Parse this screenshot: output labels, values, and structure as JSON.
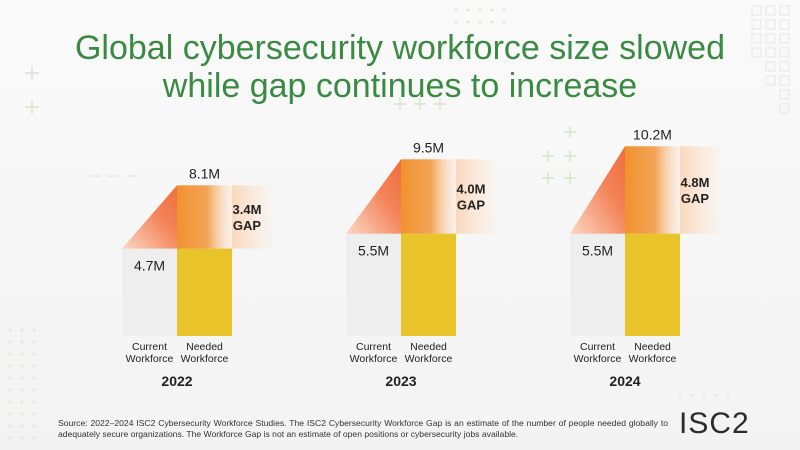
{
  "title": {
    "line1": "Global cybersecurity workforce size slowed",
    "line2": "while gap continues to increase"
  },
  "colors": {
    "title": "#3a8a43",
    "current": "#eeeeee",
    "needed": "#e8c42a",
    "gap": "#f0922e",
    "gap_light": "#fde3ce",
    "wedge": "#f07a4a"
  },
  "chart_data": {
    "type": "bar",
    "title": "Global cybersecurity workforce size slowed while gap continues to increase",
    "categories": [
      "2022",
      "2023",
      "2024"
    ],
    "bar_labels": {
      "current_line1": "Current",
      "current_line2": "Workforce",
      "needed_line1": "Needed",
      "needed_line2": "Workforce"
    },
    "series": [
      {
        "name": "Current Workforce",
        "values": [
          4.7,
          5.5,
          5.5
        ],
        "labels": [
          "4.7M",
          "5.5M",
          "5.5M"
        ]
      },
      {
        "name": "Needed Workforce",
        "values": [
          8.1,
          9.5,
          10.2
        ],
        "labels": [
          "8.1M",
          "9.5M",
          "10.2M"
        ]
      },
      {
        "name": "Gap",
        "values": [
          3.4,
          4.0,
          4.8
        ],
        "labels": [
          "3.4M",
          "4.0M",
          "4.8M"
        ],
        "suffix": "GAP"
      }
    ],
    "ylim": [
      0,
      10.2
    ],
    "xlabel": "",
    "ylabel": ""
  },
  "footnote": "Source: 2022–2024 ISC2 Cybersecurity Workforce Studies. The ISC2 Cybersecurity Workforce Gap is an estimate of the number of people needed globally to adequately secure organizations. The Workforce Gap is not an estimate of open positions or cybersecurity jobs available.",
  "logo": "ISC2"
}
